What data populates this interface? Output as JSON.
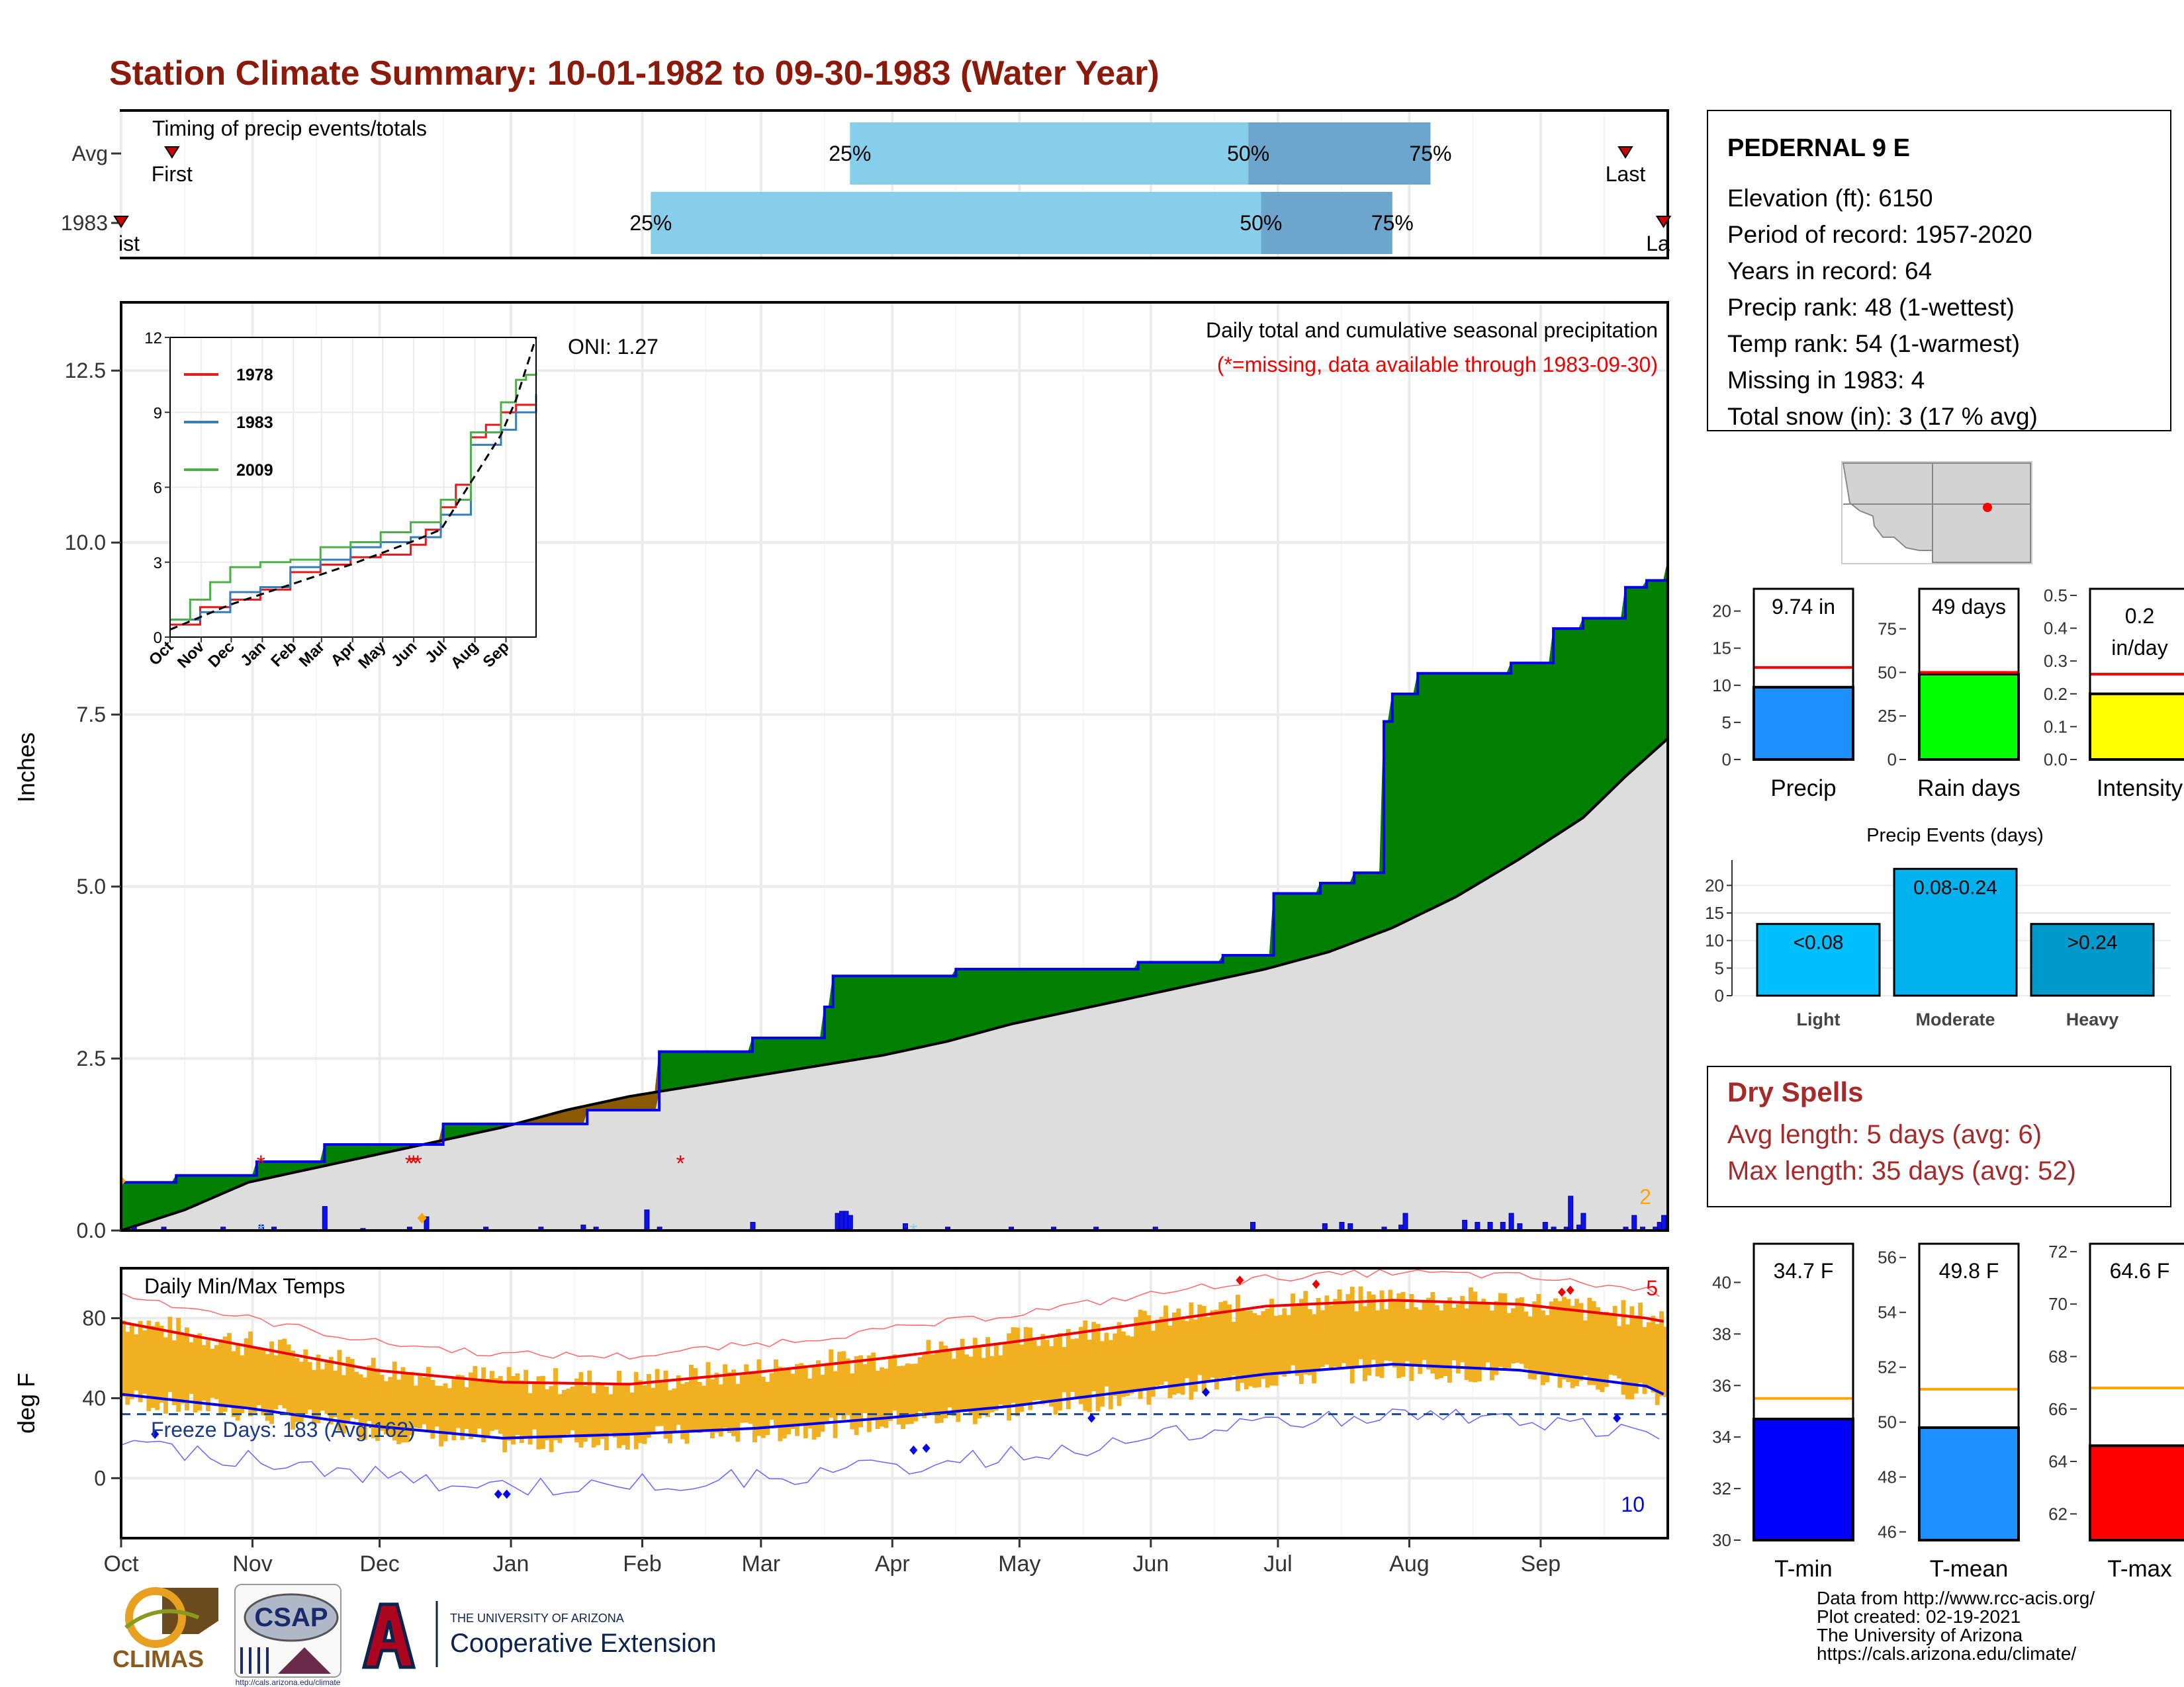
{
  "title": "Station Climate Summary: 10-01-1982 to 09-30-1983 (Water Year)",
  "colors": {
    "title": "#8b1a0a",
    "gray_fill": "#dddddd",
    "brown": "#8b5a00",
    "green": "#008000",
    "blue_line": "#0000ee",
    "bar_blue": "#1010ee",
    "gold": "#f0b020",
    "red": "#ee0000",
    "dry_spells": "#a52a2a"
  },
  "months": [
    "Oct",
    "Nov",
    "Dec",
    "Jan",
    "Feb",
    "Mar",
    "Apr",
    "May",
    "Jun",
    "Jul",
    "Aug",
    "Sep"
  ],
  "timing": {
    "title": "Timing of precip events/totals",
    "rows": [
      {
        "label": "Avg",
        "first_label": "First",
        "last_label": "Last",
        "first_day": 12,
        "last_day": 355,
        "p25_label": "25%",
        "p50_label": "50%",
        "p75_label": "75%",
        "p25_day": 172,
        "p50_day": 266,
        "p75_day": 309
      },
      {
        "label": "1983",
        "first_label": "ist",
        "last_label": "La",
        "first_day": 0,
        "last_day": 364,
        "p25_label": "25%",
        "p50_label": "50%",
        "p75_label": "75%",
        "p25_day": 125,
        "p50_day": 269,
        "p75_day": 300
      }
    ]
  },
  "precip": {
    "ylabel": "Inches",
    "yticks": [
      "0.0",
      "2.5",
      "5.0",
      "7.5",
      "10.0",
      "12.5"
    ],
    "ylim": [
      0,
      13
    ],
    "caption": "Daily total and cumulative seasonal precipitation",
    "missing_note": "(*=missing, data available through 1983-09-30)",
    "oni_label": "ONI: 1.27",
    "corner_count": "2",
    "chart_data": {
      "type": "area",
      "avg_cumulative": [
        [
          0,
          0
        ],
        [
          15,
          0.3
        ],
        [
          30,
          0.7
        ],
        [
          45,
          0.9
        ],
        [
          60,
          1.1
        ],
        [
          75,
          1.3
        ],
        [
          90,
          1.5
        ],
        [
          105,
          1.75
        ],
        [
          120,
          1.95
        ],
        [
          135,
          2.1
        ],
        [
          150,
          2.25
        ],
        [
          165,
          2.4
        ],
        [
          180,
          2.55
        ],
        [
          195,
          2.75
        ],
        [
          210,
          3.0
        ],
        [
          225,
          3.2
        ],
        [
          240,
          3.4
        ],
        [
          255,
          3.6
        ],
        [
          270,
          3.8
        ],
        [
          285,
          4.05
        ],
        [
          300,
          4.4
        ],
        [
          315,
          4.85
        ],
        [
          330,
          5.4
        ],
        [
          345,
          6.0
        ],
        [
          355,
          6.6
        ],
        [
          365,
          7.15
        ]
      ],
      "observed_cumulative": [
        [
          0,
          0.7
        ],
        [
          12,
          0.7
        ],
        [
          13,
          0.8
        ],
        [
          31,
          0.8
        ],
        [
          32,
          1.0
        ],
        [
          47,
          1.0
        ],
        [
          48,
          1.25
        ],
        [
          75,
          1.25
        ],
        [
          76,
          1.55
        ],
        [
          109,
          1.55
        ],
        [
          110,
          1.75
        ],
        [
          126,
          1.75
        ],
        [
          127,
          2.6
        ],
        [
          148,
          2.6
        ],
        [
          149,
          2.8
        ],
        [
          165,
          2.8
        ],
        [
          166,
          3.25
        ],
        [
          168,
          3.7
        ],
        [
          196,
          3.7
        ],
        [
          197,
          3.8
        ],
        [
          236,
          3.8
        ],
        [
          240,
          3.9
        ],
        [
          260,
          4.0
        ],
        [
          272,
          4.9
        ],
        [
          283,
          5.05
        ],
        [
          291,
          5.2
        ],
        [
          298,
          7.4
        ],
        [
          300,
          7.8
        ],
        [
          306,
          8.1
        ],
        [
          328,
          8.25
        ],
        [
          338,
          8.75
        ],
        [
          345,
          8.9
        ],
        [
          355,
          9.35
        ],
        [
          360,
          9.45
        ],
        [
          365,
          9.74
        ]
      ],
      "daily_bars": [
        [
          3,
          0.05
        ],
        [
          10,
          0.05
        ],
        [
          24,
          0.05
        ],
        [
          33,
          0.08
        ],
        [
          36,
          0.05
        ],
        [
          48,
          0.35
        ],
        [
          57,
          0.03
        ],
        [
          68,
          0.05
        ],
        [
          72,
          0.2
        ],
        [
          86,
          0.05
        ],
        [
          99,
          0.05
        ],
        [
          109,
          0.08
        ],
        [
          112,
          0.05
        ],
        [
          124,
          0.3
        ],
        [
          127,
          0.05
        ],
        [
          149,
          0.12
        ],
        [
          169,
          0.25
        ],
        [
          170,
          0.28
        ],
        [
          171,
          0.28
        ],
        [
          172,
          0.22
        ],
        [
          185,
          0.1
        ],
        [
          195,
          0.05
        ],
        [
          210,
          0.05
        ],
        [
          220,
          0.05
        ],
        [
          230,
          0.05
        ],
        [
          244,
          0.05
        ],
        [
          267,
          0.12
        ],
        [
          284,
          0.1
        ],
        [
          288,
          0.12
        ],
        [
          290,
          0.1
        ],
        [
          298,
          0.05
        ],
        [
          302,
          0.08
        ],
        [
          303,
          0.25
        ],
        [
          317,
          0.15
        ],
        [
          320,
          0.12
        ],
        [
          323,
          0.12
        ],
        [
          326,
          0.12
        ],
        [
          328,
          0.25
        ],
        [
          330,
          0.1
        ],
        [
          336,
          0.12
        ],
        [
          338,
          0.05
        ],
        [
          341,
          0.05
        ],
        [
          342,
          0.5
        ],
        [
          344,
          0.08
        ],
        [
          345,
          0.25
        ],
        [
          355,
          0.05
        ],
        [
          357,
          0.22
        ],
        [
          359,
          0.05
        ],
        [
          362,
          0.05
        ],
        [
          363,
          0.12
        ],
        [
          364,
          0.22
        ]
      ],
      "missing_markers": [
        [
          33,
          1.0
        ],
        [
          68,
          1.0
        ],
        [
          69,
          1.0
        ],
        [
          70,
          1.0
        ],
        [
          132,
          1.0
        ]
      ]
    }
  },
  "inset": {
    "yticks": [
      "0",
      "3",
      "6",
      "9",
      "12"
    ],
    "ylim": [
      0,
      12
    ],
    "xticks": [
      "Oct",
      "Nov",
      "Dec",
      "Jan",
      "Feb",
      "Mar",
      "Apr",
      "May",
      "Jun",
      "Jul",
      "Aug",
      "Sep"
    ],
    "chart_data": {
      "type": "line",
      "series": [
        {
          "name": "1978",
          "color": "#e41a1c",
          "points": [
            [
              0,
              0.5
            ],
            [
              30,
              1.2
            ],
            [
              60,
              1.5
            ],
            [
              90,
              1.9
            ],
            [
              120,
              2.6
            ],
            [
              150,
              2.9
            ],
            [
              180,
              3.2
            ],
            [
              210,
              3.3
            ],
            [
              240,
              3.7
            ],
            [
              255,
              4.3
            ],
            [
              270,
              5.2
            ],
            [
              285,
              6.1
            ],
            [
              300,
              8.0
            ],
            [
              315,
              8.5
            ],
            [
              330,
              9.0
            ],
            [
              345,
              9.3
            ],
            [
              365,
              9.4
            ]
          ]
        },
        {
          "name": "1983",
          "color": "#377eb8",
          "points": [
            [
              0,
              0.7
            ],
            [
              30,
              1.0
            ],
            [
              60,
              1.8
            ],
            [
              90,
              2.0
            ],
            [
              120,
              2.8
            ],
            [
              150,
              3.1
            ],
            [
              180,
              3.6
            ],
            [
              210,
              3.8
            ],
            [
              240,
              4.0
            ],
            [
              270,
              4.9
            ],
            [
              300,
              7.7
            ],
            [
              330,
              8.3
            ],
            [
              345,
              9.0
            ],
            [
              365,
              9.74
            ]
          ]
        },
        {
          "name": "2009",
          "color": "#4daf4a",
          "points": [
            [
              0,
              0.7
            ],
            [
              20,
              1.5
            ],
            [
              40,
              2.2
            ],
            [
              60,
              2.8
            ],
            [
              90,
              3.0
            ],
            [
              120,
              3.1
            ],
            [
              150,
              3.6
            ],
            [
              180,
              3.8
            ],
            [
              210,
              4.2
            ],
            [
              240,
              4.6
            ],
            [
              270,
              5.5
            ],
            [
              300,
              8.2
            ],
            [
              330,
              9.4
            ],
            [
              345,
              10.3
            ],
            [
              355,
              10.5
            ],
            [
              365,
              10.6
            ]
          ]
        },
        {
          "name": "avg",
          "color": "#000000",
          "points": [
            [
              0,
              0.3
            ],
            [
              60,
              1.3
            ],
            [
              120,
              2.1
            ],
            [
              180,
              2.9
            ],
            [
              240,
              3.8
            ],
            [
              270,
              4.3
            ],
            [
              300,
              6.2
            ],
            [
              330,
              8.1
            ],
            [
              345,
              9.5
            ],
            [
              365,
              12.0
            ]
          ]
        }
      ]
    }
  },
  "temp": {
    "ylabel": "deg F",
    "title": "Daily Min/Max Temps",
    "yticks": [
      "0",
      "40",
      "80"
    ],
    "ylim": [
      -30,
      105
    ],
    "freeze_text": "Freeze Days: 183 (Avg:162)",
    "count_top": "5",
    "count_bottom": "10",
    "chart_data": {
      "type": "line",
      "avg_max": [
        [
          0,
          78
        ],
        [
          30,
          66
        ],
        [
          60,
          54
        ],
        [
          90,
          48
        ],
        [
          120,
          47
        ],
        [
          150,
          53
        ],
        [
          180,
          60
        ],
        [
          210,
          68
        ],
        [
          240,
          77
        ],
        [
          270,
          86
        ],
        [
          300,
          89
        ],
        [
          330,
          87
        ],
        [
          360,
          80
        ],
        [
          365,
          78
        ]
      ],
      "avg_min": [
        [
          0,
          42
        ],
        [
          30,
          35
        ],
        [
          60,
          26
        ],
        [
          90,
          20
        ],
        [
          120,
          22
        ],
        [
          150,
          25
        ],
        [
          180,
          30
        ],
        [
          210,
          36
        ],
        [
          240,
          44
        ],
        [
          270,
          52
        ],
        [
          300,
          57
        ],
        [
          330,
          54
        ],
        [
          360,
          46
        ],
        [
          365,
          41
        ]
      ],
      "freeze_line": 32
    }
  },
  "info": {
    "station": "PEDERNAL 9 E",
    "lines": [
      "Elevation (ft): 6150",
      "Period of record: 1957-2020",
      "Years in record: 64",
      "Precip rank: 48 (1-wettest)",
      "Temp rank: 54 (1-warmest)",
      "Missing in 1983: 4",
      "Total snow (in): 3 (17 % avg)"
    ]
  },
  "mini_bars": [
    {
      "label": "Precip",
      "value_text": "9.74 in",
      "value": 9.74,
      "avg": 12.4,
      "yticks": [
        "0",
        "5",
        "10",
        "15",
        "20"
      ],
      "ylim": [
        0,
        23
      ],
      "color": "#1e90ff"
    },
    {
      "label": "Rain days",
      "value_text": "49 days",
      "value": 49,
      "avg": 50,
      "yticks": [
        "0",
        "25",
        "50",
        "75"
      ],
      "ylim": [
        0,
        98
      ],
      "color": "#00ff00"
    },
    {
      "label": "Intensity",
      "value_text": "0.2 in/day",
      "value": 0.2,
      "avg": 0.26,
      "yticks": [
        "0.0",
        "0.1",
        "0.2",
        "0.3",
        "0.4",
        "0.5"
      ],
      "ylim": [
        0,
        0.52
      ],
      "color": "#ffff00"
    }
  ],
  "precip_events": {
    "title": "Precip Events (days)",
    "yticks": [
      "0",
      "5",
      "10",
      "15",
      "20"
    ],
    "ylim": [
      0,
      24
    ],
    "chart_data": {
      "type": "bar",
      "categories": [
        "Light",
        "Moderate",
        "Heavy"
      ],
      "bar_labels": [
        "<0.08",
        "0.08-0.24",
        ">0.24"
      ],
      "values": [
        13,
        23,
        13
      ],
      "colors": [
        "#00bfff",
        "#00b2ee",
        "#009acd"
      ]
    }
  },
  "dry_spells": {
    "title": "Dry Spells",
    "avg_length": "Avg length: 5 days (avg: 6)",
    "max_length": "Max length: 35 days (avg: 52)"
  },
  "temp_bars": [
    {
      "label": "T-min",
      "value_text": "34.7 F",
      "value": 34.7,
      "avg": 35.5,
      "yticks": [
        "30",
        "32",
        "34",
        "36",
        "38",
        "40"
      ],
      "ylim": [
        30,
        41.5
      ],
      "color": "#0000ff"
    },
    {
      "label": "T-mean",
      "value_text": "49.8 F",
      "value": 49.8,
      "avg": 51.2,
      "yticks": [
        "46",
        "48",
        "50",
        "52",
        "54",
        "56"
      ],
      "ylim": [
        45.7,
        56.5
      ],
      "color": "#1e90ff"
    },
    {
      "label": "T-max",
      "value_text": "64.6 F",
      "value": 64.6,
      "avg": 66.8,
      "yticks": [
        "62",
        "64",
        "66",
        "68",
        "70",
        "72"
      ],
      "ylim": [
        61,
        72.3
      ],
      "color": "#ff0000"
    }
  ],
  "footer": {
    "lines": [
      "Data from http://www.rcc-acis.org/",
      "Plot created: 02-19-2021",
      "The University of Arizona",
      "https://cals.arizona.edu/climate/"
    ],
    "climas": "CLIMAS",
    "csap": "CSAP",
    "csap_url": "http://cals.arizona.edu/climate",
    "ua_small": "THE UNIVERSITY OF ARIZONA",
    "ua_big": "Cooperative Extension"
  }
}
